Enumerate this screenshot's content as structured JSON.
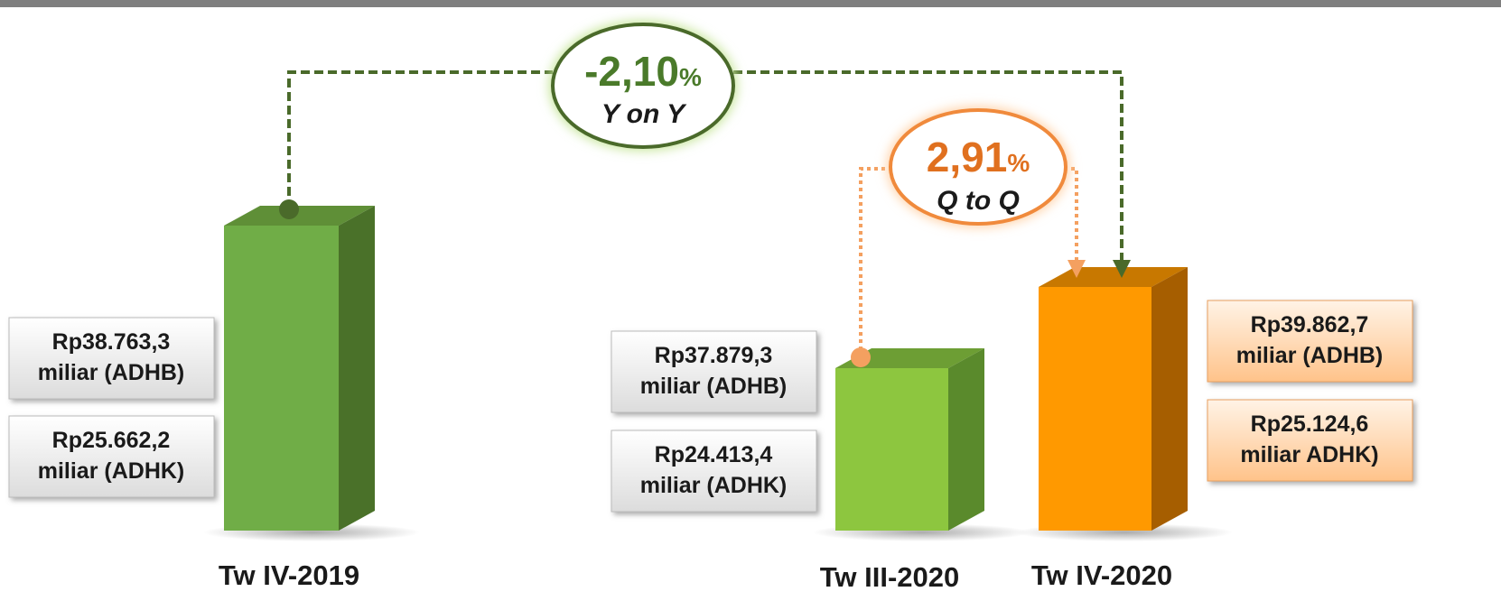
{
  "yoy": {
    "value": "-2,10",
    "unit": "%",
    "caption": "Y on Y"
  },
  "qoq": {
    "value": "2,91",
    "unit": "%",
    "caption": "Q to Q"
  },
  "bars": [
    {
      "label": "Tw IV-2019",
      "adhb": [
        "Rp38.763,3",
        "miliar (ADHB)"
      ],
      "adhk": [
        "Rp25.662,2",
        "miliar (ADHK)"
      ]
    },
    {
      "label": "Tw III-2020",
      "adhb": [
        "Rp37.879,3",
        "miliar (ADHB)"
      ],
      "adhk": [
        "Rp24.413,4",
        "miliar (ADHK)"
      ]
    },
    {
      "label": "Tw IV-2020",
      "adhb": [
        "Rp39.862,7",
        "miliar (ADHB)"
      ],
      "adhk": [
        "Rp25.124,6",
        "miliar ADHK)"
      ]
    }
  ]
}
